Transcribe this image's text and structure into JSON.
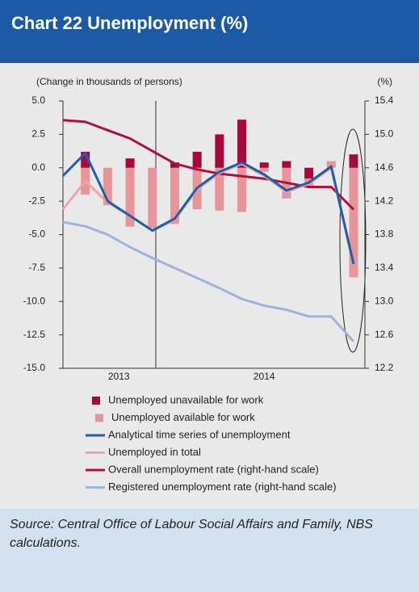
{
  "chart_data": {
    "type": "bar",
    "title": "Chart 22 Unemployment (%)",
    "y_label": "(Change in thousands of persons)",
    "y2_label": "(%)",
    "source": "Source: Central Office of Labour Social Affairs and Family, NBS calculations.",
    "categories": [
      null,
      null,
      null,
      null,
      null,
      null,
      null,
      null,
      null,
      null,
      null,
      null,
      null,
      null
    ],
    "x_groups": [
      {
        "label": "2013",
        "start": 1,
        "end": 4
      },
      {
        "label": "2014",
        "start": 5,
        "end": 13
      }
    ],
    "ylim": [
      -15,
      5
    ],
    "yticks": [
      {
        "value": 5,
        "label": "5.0"
      },
      2.5,
      {
        "value": 0,
        "label": "0.0"
      },
      -2.5,
      {
        "value": -5,
        "label": "-5.0"
      },
      -7.5,
      {
        "value": -10,
        "label": "-10.0"
      },
      -12.5,
      {
        "value": -15,
        "label": "-15.0"
      }
    ],
    "y2lim": [
      12.2,
      15.4
    ],
    "y2ticks": [
      15.4,
      {
        "value": 15,
        "label": "15.0"
      },
      14.6,
      14.2,
      13.8,
      13.4,
      {
        "value": 13,
        "label": "13.0"
      },
      12.6,
      12.2
    ],
    "series": [
      {
        "name": "Unemployed unavailable for work",
        "kind": "bar",
        "color": "#a6093d",
        "values": [
          null,
          1.2,
          0,
          0.7,
          0,
          0.4,
          1.2,
          2.5,
          3.6,
          0.4,
          0.5,
          -0.8,
          0,
          1.0
        ]
      },
      {
        "name": "Unemployed available for work",
        "kind": "bar",
        "color": "#e8959a",
        "values": [
          null,
          -2.0,
          -2.8,
          -4.4,
          -4.5,
          -4.2,
          -3.1,
          -3.2,
          -3.3,
          -0.3,
          -2.3,
          -1.5,
          0.5,
          -8.2
        ]
      },
      {
        "name": "Analytical time series of unemployment",
        "kind": "line",
        "color": "#1f5fa8",
        "values": [
          -0.6,
          1.1,
          -2.5,
          -3.6,
          -4.7,
          -3.8,
          -1.5,
          -0.3,
          0.4,
          -0.5,
          -1.7,
          -1.1,
          0.1,
          -7.2
        ]
      },
      {
        "name": "Unemployed in total",
        "kind": "line",
        "color": "#f0a3a6",
        "values": [
          -3.1,
          -1.0,
          -2.6,
          -3.6,
          -4.7,
          -3.9,
          -1.6,
          -0.4,
          0.3,
          -0.6,
          -1.8,
          -1.2,
          0.0,
          -7.3
        ]
      },
      {
        "name": "Overall unemployment rate (right-hand scale)",
        "kind": "line",
        "axis": "y2",
        "color": "#b0103f",
        "values": [
          15.17,
          15.15,
          15.05,
          14.95,
          14.8,
          14.65,
          14.58,
          14.53,
          14.5,
          14.47,
          14.42,
          14.37,
          14.37,
          14.1
        ]
      },
      {
        "name": "Registered unemployment rate (right-hand scale)",
        "kind": "line",
        "axis": "y2",
        "color": "#9eb3dc",
        "values": [
          13.95,
          13.9,
          13.8,
          13.65,
          13.52,
          13.4,
          13.28,
          13.16,
          13.03,
          12.95,
          12.9,
          12.82,
          12.82,
          12.52
        ]
      }
    ]
  }
}
